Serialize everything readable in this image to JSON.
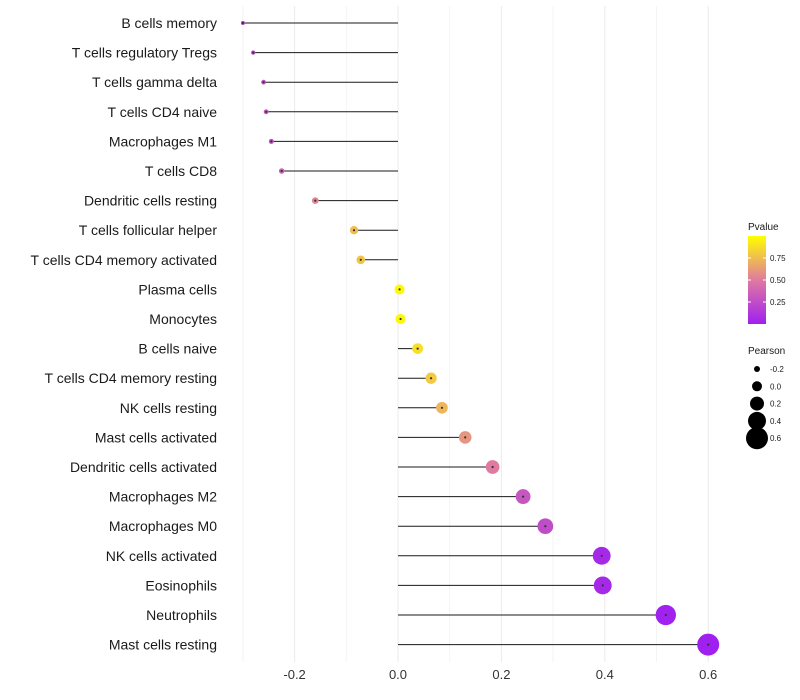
{
  "chart_data": {
    "type": "lollipop",
    "title": "",
    "xlabel": "",
    "ylabel": "",
    "xlim": [
      -0.3,
      0.6
    ],
    "x_ticks": [
      -0.2,
      0.0,
      0.2,
      0.4,
      0.6
    ],
    "x_tick_labels": [
      "-0.2",
      "0.0",
      "0.2",
      "0.4",
      "0.6"
    ],
    "grid": true,
    "categories": [
      "B cells memory",
      "T cells regulatory  Tregs",
      "T cells gamma delta",
      "T cells CD4 naive",
      "Macrophages M1",
      "T cells CD8",
      "Dendritic cells resting",
      "T cells follicular helper",
      "T cells CD4 memory activated",
      "Plasma cells",
      "Monocytes",
      "B cells naive",
      "T cells CD4 memory resting",
      "NK cells resting",
      "Mast cells activated",
      "Dendritic cells activated",
      "Macrophages M2",
      "Macrophages M0",
      "NK cells activated",
      "Eosinophils",
      "Neutrophils",
      "Mast cells resting"
    ],
    "pearson": [
      -0.3,
      -0.28,
      -0.26,
      -0.255,
      -0.245,
      -0.225,
      -0.16,
      -0.085,
      -0.072,
      0.003,
      0.005,
      0.038,
      0.064,
      0.085,
      0.13,
      0.183,
      0.242,
      0.285,
      0.394,
      0.396,
      0.518,
      0.6
    ],
    "pvalue": [
      0.18,
      0.25,
      0.28,
      0.28,
      0.28,
      0.35,
      0.55,
      0.75,
      0.78,
      0.98,
      0.97,
      0.88,
      0.8,
      0.72,
      0.6,
      0.5,
      0.3,
      0.25,
      0.05,
      0.05,
      0.01,
      0.0
    ],
    "legend": {
      "color_title": "Pvalue",
      "color_ticks": [
        "0.75",
        "0.50",
        "0.25"
      ],
      "color_tick_values": [
        0.75,
        0.5,
        0.25
      ],
      "color_low": "#a020f0",
      "color_mid": "#e07aa0",
      "color_high": "#ffff00",
      "size_title": "Pearson",
      "size_ticks": [
        "-0.2",
        "0.0",
        "0.2",
        "0.4",
        "0.6"
      ],
      "size_tick_values": [
        -0.2,
        0.0,
        0.2,
        0.4,
        0.6
      ],
      "position": "right"
    }
  }
}
